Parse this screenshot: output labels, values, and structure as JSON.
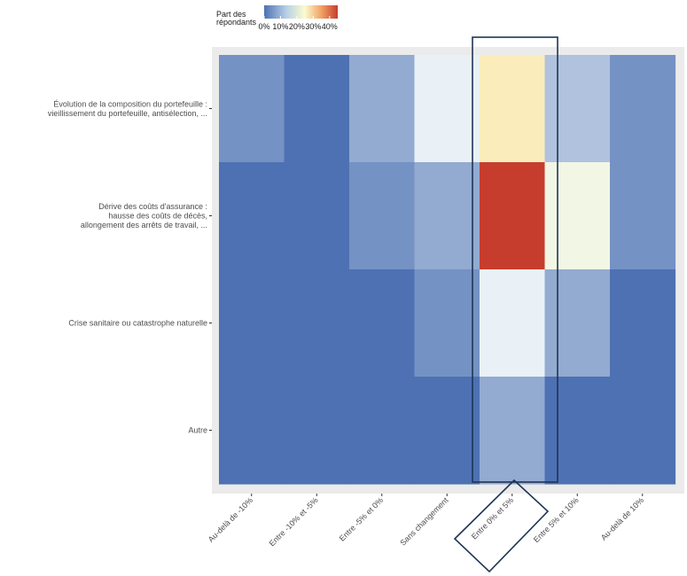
{
  "chart_data": {
    "type": "heatmap",
    "legend": {
      "title_line1": "Part des",
      "title_line2": "répondants",
      "ticks": [
        "0%",
        "10%",
        "20%",
        "30%",
        "40%"
      ],
      "tick_values": [
        0,
        10,
        20,
        30,
        40
      ],
      "range": [
        0,
        45
      ],
      "position": "top-left"
    },
    "x_categories": [
      "Au-delà de -10%",
      "Entre -10% et -5%",
      "Entre -5% et 0%",
      "Sans changement",
      "Entre 0% et 5%",
      "Entre 5% et 10%",
      "Au-delà de 10%"
    ],
    "y_categories": [
      [
        "Évolution de la composition du portefeuille :",
        "vieillissement du portefeuille, antisélection, ..."
      ],
      [
        "Dérive des coûts d'assurance :",
        "hausse des coûts de décès,",
        "allongement des arrêts de travail, ..."
      ],
      [
        "Crise sanitaire ou catastrophe naturelle"
      ],
      [
        "Autre"
      ]
    ],
    "values": [
      [
        4,
        0,
        7,
        16,
        27,
        10,
        4
      ],
      [
        0,
        0,
        4,
        7,
        45,
        20,
        4
      ],
      [
        0,
        0,
        0,
        4,
        16,
        7,
        0
      ],
      [
        0,
        0,
        0,
        0,
        7,
        0,
        0
      ]
    ],
    "highlight_column": "Entre 0% et 5%",
    "colors": {
      "scale": [
        "#4e71b3",
        "#e9f1f7",
        "#fbfcd0",
        "#f6b671",
        "#c63d2e"
      ],
      "panel_background": "#ebebeb",
      "highlight_stroke": "#1f3556"
    },
    "grid": true
  }
}
